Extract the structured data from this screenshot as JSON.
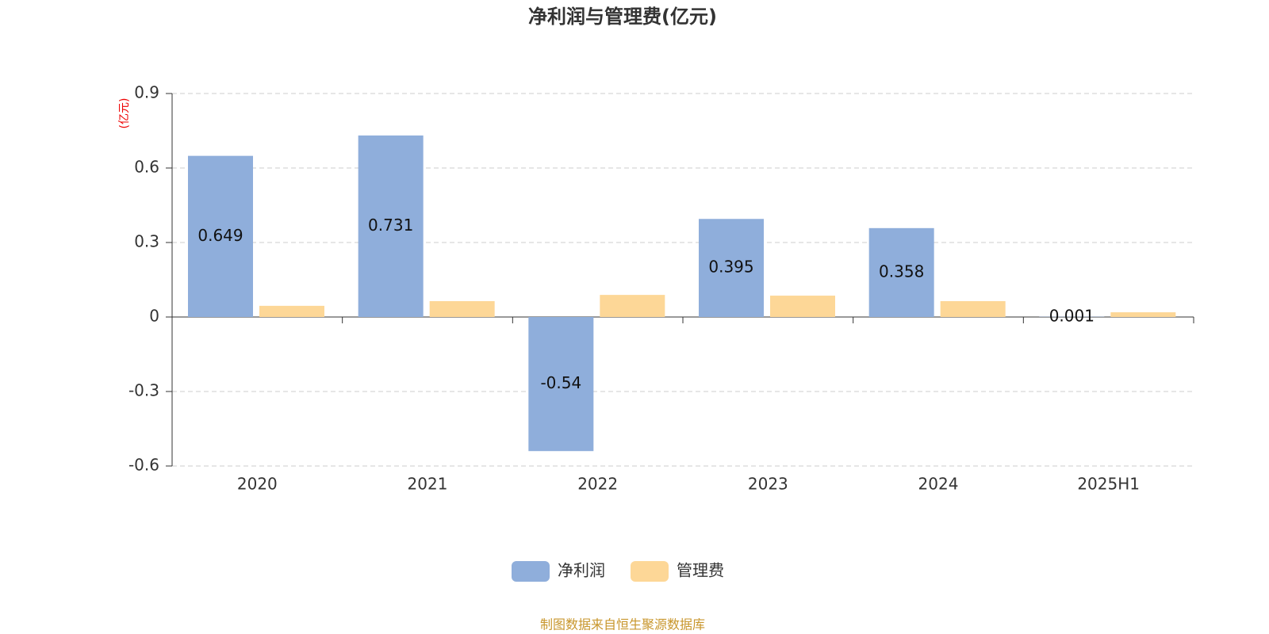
{
  "chart_data": {
    "type": "bar",
    "title": "净利润与管理费(亿元)",
    "y_label": "(亿元)",
    "categories": [
      "2020",
      "2021",
      "2022",
      "2023",
      "2024",
      "2025H1"
    ],
    "series": [
      {
        "name": "净利润",
        "color": "#8faedb",
        "values": [
          0.649,
          0.731,
          -0.54,
          0.395,
          0.358,
          0.001
        ],
        "data_labels": true
      },
      {
        "name": "管理费",
        "color": "#fdd797",
        "values": [
          0.045,
          0.064,
          0.089,
          0.086,
          0.064,
          0.019
        ],
        "data_labels": false
      }
    ],
    "ylim": [
      -0.6,
      0.9
    ],
    "yticks": [
      0.9,
      0.6,
      0.3,
      0,
      -0.3,
      -0.6
    ],
    "grid": true,
    "source": "制图数据来自恒生聚源数据库"
  }
}
